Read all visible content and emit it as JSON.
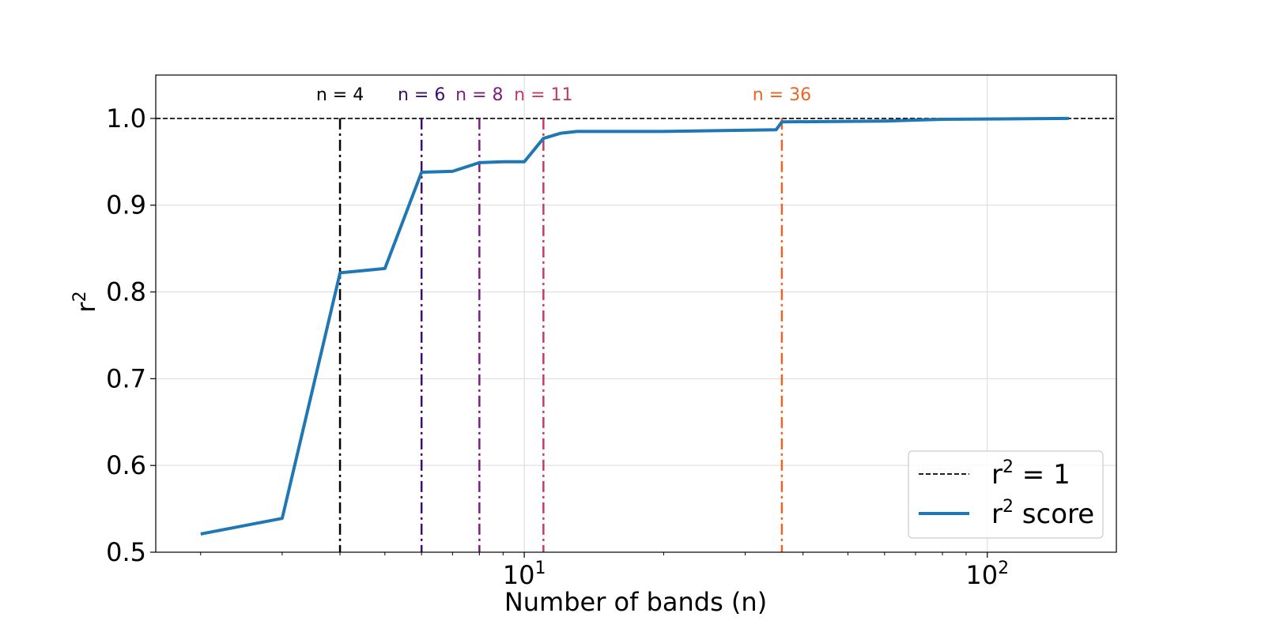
{
  "chart_data": {
    "type": "line",
    "title": "",
    "xlabel": "Number of bands (n)",
    "ylabel_base": "r",
    "ylabel_sup": "2",
    "x_scale": "log",
    "xlim": [
      1.6,
      190
    ],
    "ylim": [
      0.5,
      1.05
    ],
    "grid": true,
    "x_ticks": [
      {
        "value": 10,
        "base": "10",
        "exp": "1"
      },
      {
        "value": 100,
        "base": "10",
        "exp": "2"
      }
    ],
    "y_ticks": [
      {
        "value": 0.5,
        "label": "0.5"
      },
      {
        "value": 0.6,
        "label": "0.6"
      },
      {
        "value": 0.7,
        "label": "0.7"
      },
      {
        "value": 0.8,
        "label": "0.8"
      },
      {
        "value": 0.9,
        "label": "0.9"
      },
      {
        "value": 1.0,
        "label": "1.0"
      }
    ],
    "series": [
      {
        "name": "r² score",
        "color": "#1f77b4",
        "x": [
          2,
          3,
          4,
          5,
          6,
          7,
          8,
          9,
          10,
          11,
          12,
          13,
          20,
          35,
          36,
          60,
          80,
          150
        ],
        "y": [
          0.521,
          0.539,
          0.822,
          0.827,
          0.938,
          0.939,
          0.949,
          0.95,
          0.95,
          0.977,
          0.983,
          0.985,
          0.985,
          0.987,
          0.996,
          0.997,
          0.999,
          1.0
        ]
      }
    ],
    "reference_line": {
      "y": 1.0,
      "color": "#000000",
      "style": "dashed"
    },
    "markers": [
      {
        "n": 4,
        "label": "n = 4",
        "color": "#000000"
      },
      {
        "n": 6,
        "label": "n = 6",
        "color": "#3b0f70"
      },
      {
        "n": 8,
        "label": "n = 8",
        "color": "#7e1d7d"
      },
      {
        "n": 11,
        "label": "n = 11",
        "color": "#c43c63"
      },
      {
        "n": 36,
        "label": "n = 36",
        "color": "#ea6525"
      }
    ],
    "legend": {
      "position": "bottom-right",
      "entries": [
        {
          "pre": "r",
          "sup": "2",
          "post": " = 1",
          "color": "#000000",
          "style": "dashed"
        },
        {
          "pre": "r",
          "sup": "2",
          "post": " score",
          "color": "#1f77b4",
          "style": "solid"
        }
      ]
    }
  }
}
